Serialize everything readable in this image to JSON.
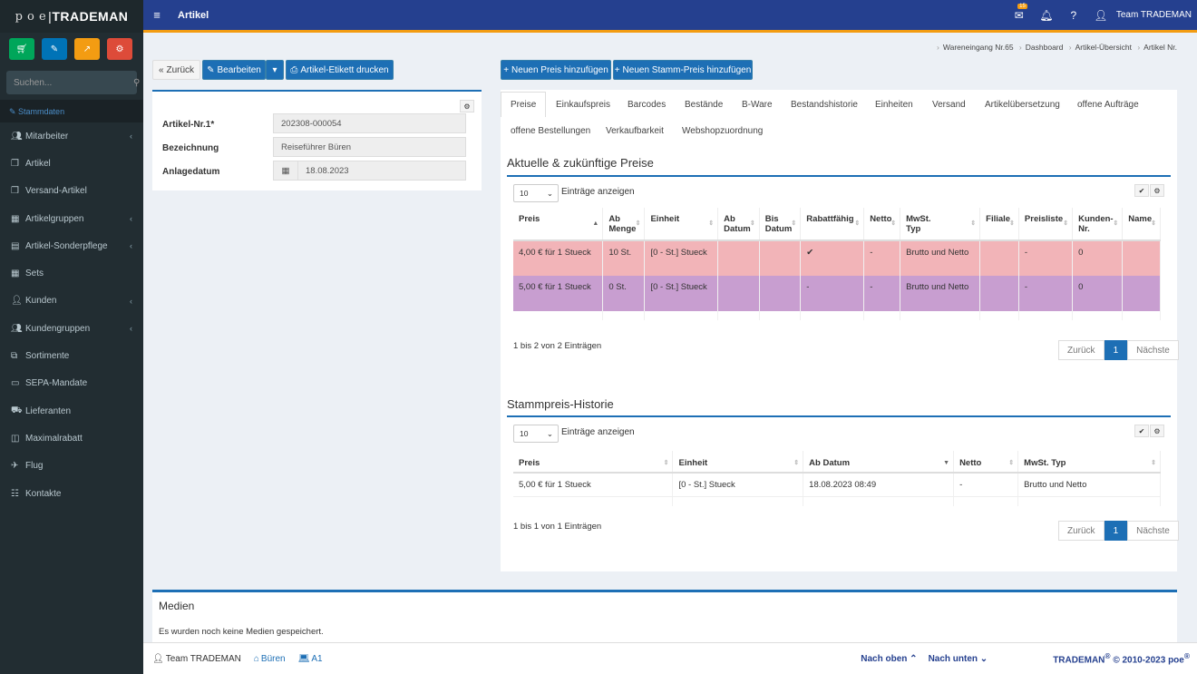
{
  "sidebar": {
    "brand_prefix": "p o e",
    "brand": "TRADEMAN",
    "search_placeholder": "Suchen...",
    "section": "Stammdaten",
    "items": [
      {
        "label": "Mitarbeiter",
        "icon": "users-icon",
        "chevron": true
      },
      {
        "label": "Artikel",
        "icon": "cube-icon",
        "chevron": false
      },
      {
        "label": "Versand-Artikel",
        "icon": "cube-icon",
        "chevron": false
      },
      {
        "label": "Artikelgruppen",
        "icon": "cubes-icon",
        "chevron": true
      },
      {
        "label": "Artikel-Sonderpflege",
        "icon": "table-icon",
        "chevron": true
      },
      {
        "label": "Sets",
        "icon": "cubes-icon",
        "chevron": false
      },
      {
        "label": "Kunden",
        "icon": "user-icon",
        "chevron": true
      },
      {
        "label": "Kundengruppen",
        "icon": "users-icon",
        "chevron": true
      },
      {
        "label": "Sortimente",
        "icon": "sitemap-icon",
        "chevron": false
      },
      {
        "label": "SEPA-Mandate",
        "icon": "card-icon",
        "chevron": false
      },
      {
        "label": "Lieferanten",
        "icon": "truck-icon",
        "chevron": false
      },
      {
        "label": "Maximalrabatt",
        "icon": "money-icon",
        "chevron": false
      },
      {
        "label": "Flug",
        "icon": "plane-icon",
        "chevron": false
      },
      {
        "label": "Kontakte",
        "icon": "contacts-icon",
        "chevron": false
      }
    ]
  },
  "topbar": {
    "title": "Artikel",
    "mail_count": "15",
    "user": "Team TRADEMAN"
  },
  "breadcrumb": [
    "Wareneingang Nr.65",
    "Dashboard",
    "Artikel-Übersicht",
    "Artikel Nr."
  ],
  "toolbar": {
    "back": "Zurück",
    "edit": "Bearbeiten",
    "print": "Artikel-Etikett drucken",
    "new_price": "Neuen Preis hinzufügen",
    "new_master_price": "Neuen Stamm-Preis hinzufügen"
  },
  "form": {
    "artnr_label": "Artikel-Nr.1*",
    "artnr_value": "202308-000054",
    "name_label": "Bezeichnung",
    "name_value": "Reiseführer Büren",
    "date_label": "Anlagedatum",
    "date_value": "18.08.2023"
  },
  "tabs": [
    "Preise",
    "Einkaufspreis",
    "Barcodes",
    "Bestände",
    "B-Ware",
    "Bestandshistorie",
    "Einheiten",
    "Versand",
    "Artikelübersetzung",
    "offene Aufträge",
    "offene Bestellungen",
    "Verkaufbarkeit",
    "Webshopzuordnung"
  ],
  "prices": {
    "title": "Aktuelle & zukünftige Preise",
    "length_value": "10",
    "length_label": "Einträge anzeigen",
    "headers": [
      [
        "Preis",
        ""
      ],
      [
        "Ab",
        "Menge"
      ],
      [
        "Einheit",
        ""
      ],
      [
        "Ab",
        "Datum"
      ],
      [
        "Bis",
        "Datum"
      ],
      [
        "Rabattfähig",
        ""
      ],
      [
        "Netto",
        ""
      ],
      [
        "MwSt.",
        "Typ"
      ],
      [
        "Filiale",
        ""
      ],
      [
        "Preisliste",
        ""
      ],
      [
        "Kunden-",
        "Nr."
      ],
      [
        "Name",
        ""
      ]
    ],
    "rows": [
      [
        "4,00 € für 1 Stueck",
        "10 St.",
        "[0 - St.] Stueck",
        "",
        "",
        "✔",
        "-",
        "Brutto und Netto",
        "",
        "-",
        "0",
        ""
      ],
      [
        "5,00 € für 1 Stueck",
        "0 St.",
        "[0 - St.] Stueck",
        "",
        "",
        "-",
        "-",
        "Brutto und Netto",
        "",
        "-",
        "0",
        ""
      ]
    ],
    "info": "1 bis 2 von 2 Einträgen"
  },
  "history": {
    "title": "Stammpreis-Historie",
    "length_value": "10",
    "length_label": "Einträge anzeigen",
    "headers": [
      "Preis",
      "Einheit",
      "Ab Datum",
      "Netto",
      "MwSt. Typ"
    ],
    "rows": [
      [
        "5,00 € für 1 Stueck",
        "[0 - St.] Stueck",
        "18.08.2023 08:49",
        "-",
        "Brutto und Netto"
      ]
    ],
    "info": "1 bis 1 von 1 Einträgen"
  },
  "pager": {
    "prev": "Zurück",
    "page": "1",
    "next": "Nächste"
  },
  "media": {
    "title": "Medien",
    "empty": "Es wurden noch keine Medien gespeichert."
  },
  "footer": {
    "user": "Team TRADEMAN",
    "location": "Büren",
    "device": "A1",
    "up": "Nach oben",
    "down": "Nach unten",
    "copyright_brand": "TRADEMAN",
    "copyright": "© 2010-2023",
    "copyright_poe": "poe"
  },
  "colors": {
    "primary": "#1d6fb5",
    "topbar": "#25408f",
    "sidebar": "#222d32",
    "row_red": "#f2b4b8",
    "row_purple": "#c89ed0"
  }
}
